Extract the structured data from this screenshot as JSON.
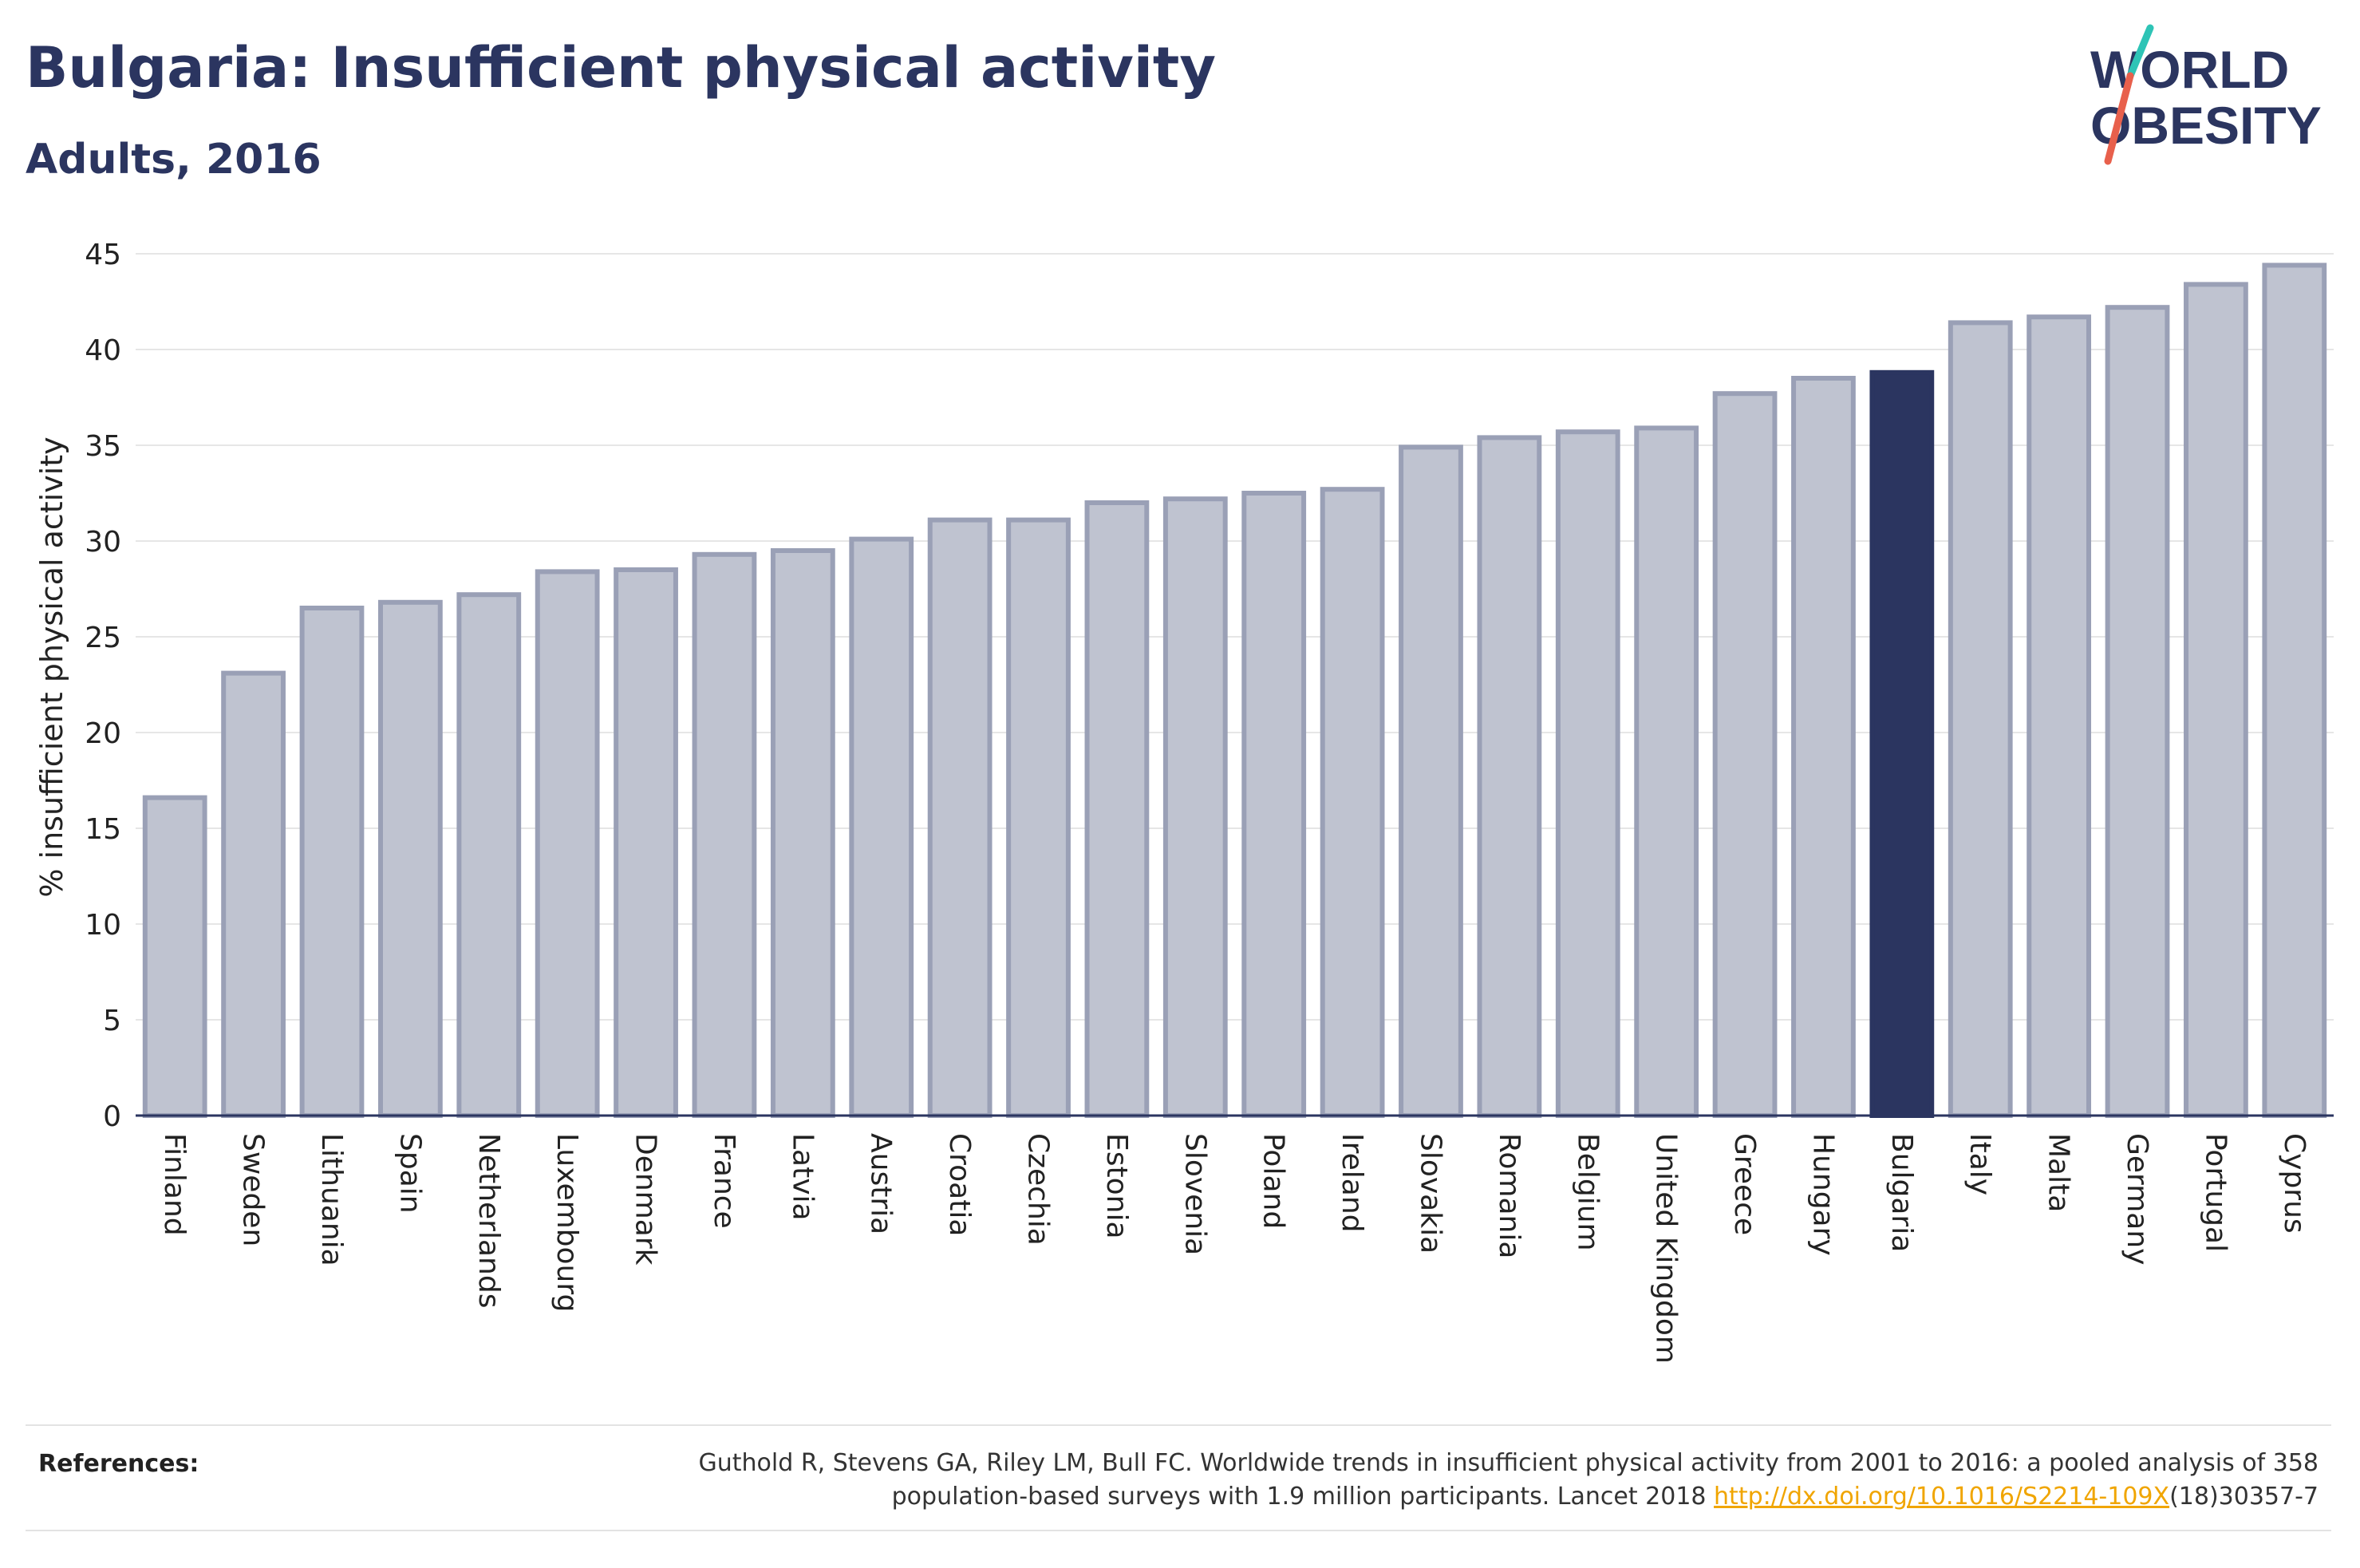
{
  "header": {
    "title": "Bulgaria: Insufficient physical activity",
    "subtitle": "Adults, 2016"
  },
  "logo": {
    "line1": "WORLD",
    "line2": "OBESITY",
    "accent_colors": [
      "#2ec4b6",
      "#e8604c"
    ]
  },
  "chart_data": {
    "type": "bar",
    "ylabel": "% insufficient physical activity",
    "xlabel": "",
    "ylim": [
      0,
      45
    ],
    "yticks": [
      0,
      5,
      10,
      15,
      20,
      25,
      30,
      35,
      40,
      45
    ],
    "grid": true,
    "highlight": "Bulgaria",
    "colors": {
      "bar": "#bfc3d0",
      "bar_border": "#9aa0b6",
      "highlight": "#2b3560"
    },
    "categories": [
      "Finland",
      "Sweden",
      "Lithuania",
      "Spain",
      "Netherlands",
      "Luxembourg",
      "Denmark",
      "France",
      "Latvia",
      "Austria",
      "Croatia",
      "Czechia",
      "Estonia",
      "Slovenia",
      "Poland",
      "Ireland",
      "Slovakia",
      "Romania",
      "Belgium",
      "United Kingdom",
      "Greece",
      "Hungary",
      "Bulgaria",
      "Italy",
      "Malta",
      "Germany",
      "Portugal",
      "Cyprus"
    ],
    "values": [
      16.6,
      23.1,
      26.5,
      26.8,
      27.2,
      28.4,
      28.5,
      29.3,
      29.5,
      30.1,
      31.1,
      31.1,
      32.0,
      32.2,
      32.5,
      32.7,
      34.9,
      35.4,
      35.7,
      35.9,
      37.7,
      38.5,
      38.8,
      41.4,
      41.7,
      42.2,
      43.4,
      44.4
    ]
  },
  "references": {
    "label": "References:",
    "text_before_link": "Guthold R, Stevens GA, Riley LM, Bull FC. Worldwide trends in insufficient physical activity from 2001 to 2016: a pooled analysis of 358 population-based surveys with 1.9 million participants. Lancet 2018 ",
    "link_text": "http://dx.doi.org/10.1016/S2214-109X",
    "text_after_link": "(18)30357-7"
  }
}
